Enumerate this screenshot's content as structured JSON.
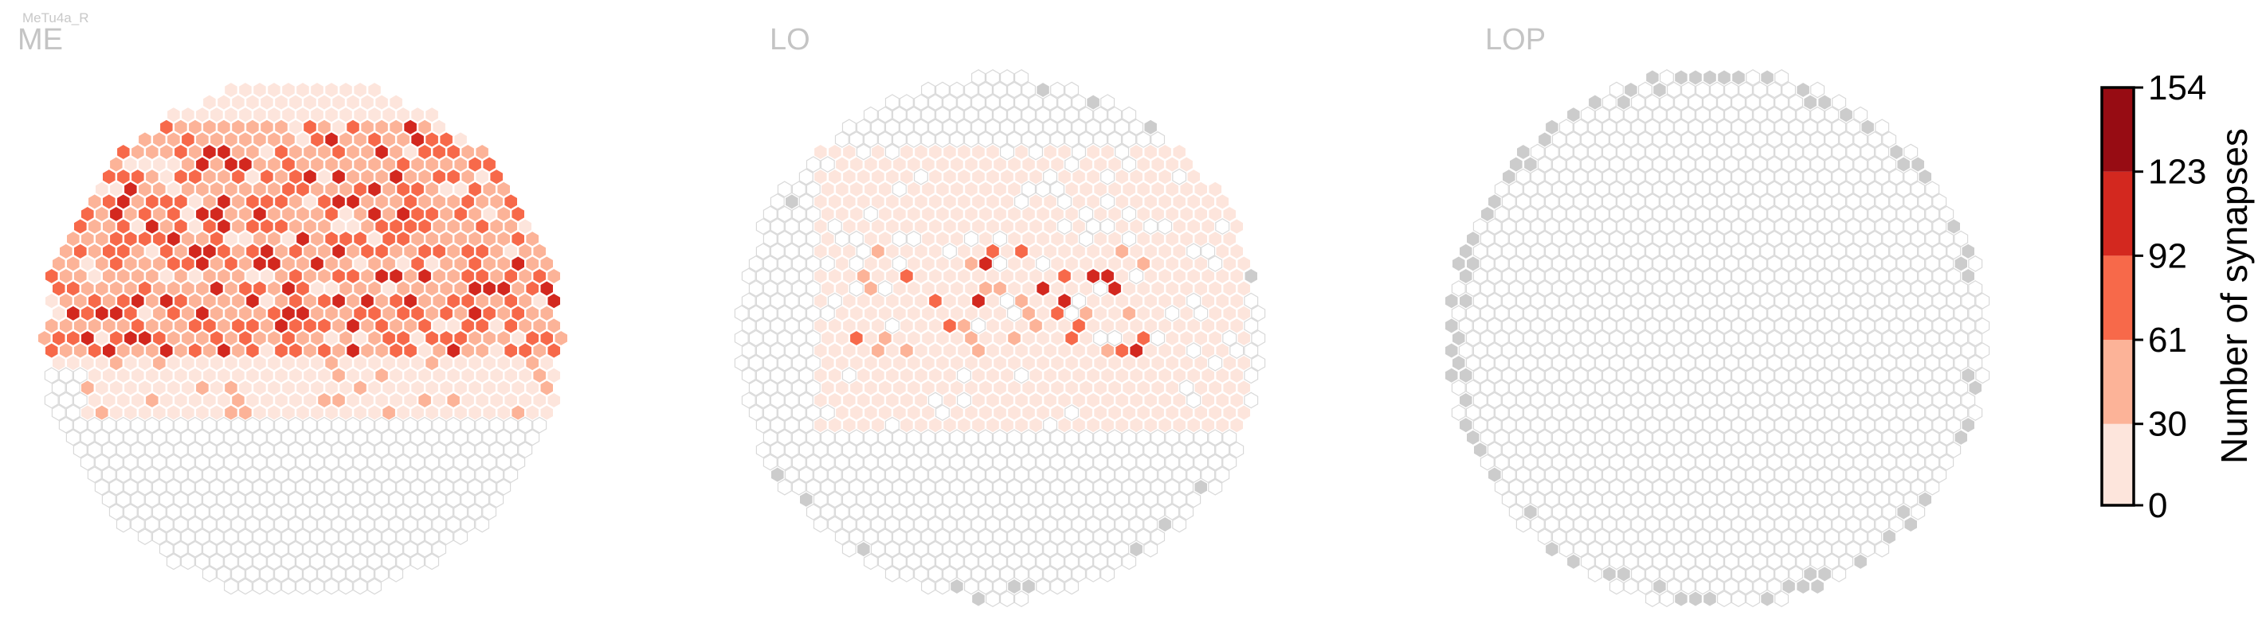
{
  "figure": {
    "top_label": "MeTu4a_R"
  },
  "chart_data": {
    "type": "heatmap",
    "cell_shape": "hexagon",
    "panels": [
      {
        "title": "ME",
        "region": "ME"
      },
      {
        "title": "LO",
        "region": "LO"
      },
      {
        "title": "LOP",
        "region": "LOP"
      }
    ],
    "colorbar": {
      "label": "Number of synapses",
      "ticks": [
        0,
        30,
        61,
        92,
        123,
        154
      ],
      "min": 0,
      "max": 154,
      "colors": [
        "#fde5dc",
        "#fcb398",
        "#f7694a",
        "#d3281f",
        "#970c13"
      ]
    },
    "colors": {
      "empty_cell_stroke": "#d9d9d9",
      "out_of_range_cell": "#cccccc"
    }
  }
}
